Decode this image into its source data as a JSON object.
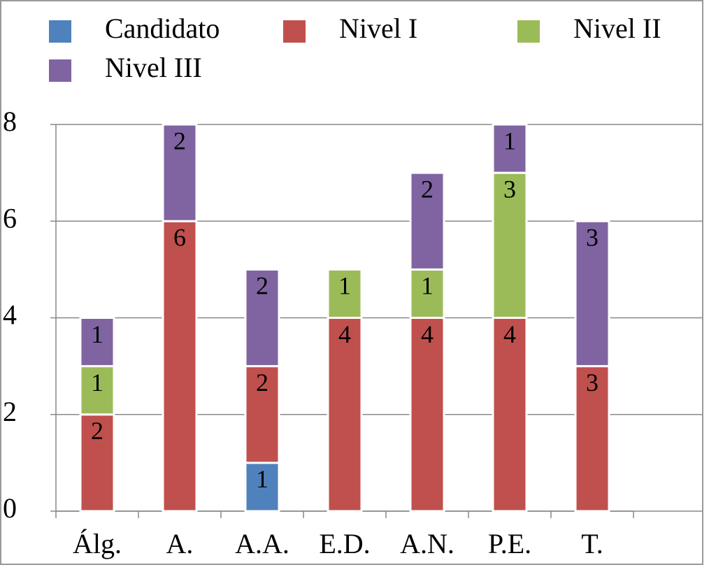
{
  "chart_data": {
    "type": "stacked_bar",
    "categories": [
      "Álg.",
      "A.",
      "A.A.",
      "E.D.",
      "A.N.",
      "P.E.",
      "T."
    ],
    "series": [
      {
        "name": "Candidato",
        "color": "#4f81bd",
        "values": [
          null,
          null,
          1,
          null,
          null,
          null,
          null
        ]
      },
      {
        "name": "Nivel I",
        "color": "#c0504d",
        "values": [
          2,
          6,
          2,
          4,
          4,
          4,
          3
        ]
      },
      {
        "name": "Nivel II",
        "color": "#9bbb59",
        "values": [
          1,
          null,
          null,
          1,
          1,
          3,
          null
        ]
      },
      {
        "name": "Nivel III",
        "color": "#8064a2",
        "values": [
          1,
          2,
          2,
          null,
          2,
          1,
          3
        ]
      }
    ],
    "ylim": [
      0,
      8
    ],
    "yticks": [
      0,
      2,
      4,
      6,
      8
    ],
    "grid": true,
    "legend": "top"
  }
}
